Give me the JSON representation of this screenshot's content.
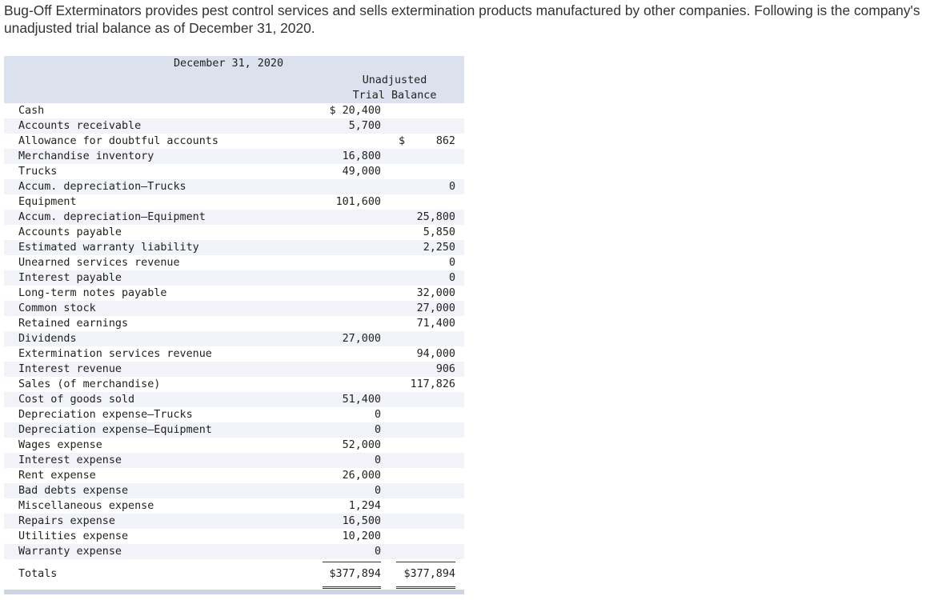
{
  "intro": "Bug-Off Exterminators provides pest control services and sells extermination products manufactured by other companies. Following is the company's unadjusted trial balance as of December 31, 2020.",
  "table": {
    "date_header": "December 31, 2020",
    "column_header_line1": "Unadjusted",
    "column_header_line2": "Trial Balance",
    "rows": [
      {
        "account": "Cash",
        "debit": "$ 20,400",
        "credit": ""
      },
      {
        "account": "Accounts receivable",
        "debit": "5,700",
        "credit": ""
      },
      {
        "account": "Allowance for doubtful accounts",
        "debit": "",
        "credit": "862",
        "credit_prefix": "$"
      },
      {
        "account": "Merchandise inventory",
        "debit": "16,800",
        "credit": ""
      },
      {
        "account": "Trucks",
        "debit": "49,000",
        "credit": ""
      },
      {
        "account": "Accum. depreciation—Trucks",
        "debit": "",
        "credit": "0"
      },
      {
        "account": "Equipment",
        "debit": "101,600",
        "credit": ""
      },
      {
        "account": "Accum. depreciation—Equipment",
        "debit": "",
        "credit": "25,800"
      },
      {
        "account": "Accounts payable",
        "debit": "",
        "credit": "5,850"
      },
      {
        "account": "Estimated warranty liability",
        "debit": "",
        "credit": "2,250"
      },
      {
        "account": "Unearned services revenue",
        "debit": "",
        "credit": "0"
      },
      {
        "account": "Interest payable",
        "debit": "",
        "credit": "0"
      },
      {
        "account": "Long-term notes payable",
        "debit": "",
        "credit": "32,000"
      },
      {
        "account": "Common stock",
        "debit": "",
        "credit": "27,000"
      },
      {
        "account": "Retained earnings",
        "debit": "",
        "credit": "71,400"
      },
      {
        "account": "Dividends",
        "debit": "27,000",
        "credit": ""
      },
      {
        "account": "Extermination services revenue",
        "debit": "",
        "credit": "94,000"
      },
      {
        "account": "Interest revenue",
        "debit": "",
        "credit": "906"
      },
      {
        "account": "Sales (of merchandise)",
        "debit": "",
        "credit": "117,826"
      },
      {
        "account": "Cost of goods sold",
        "debit": "51,400",
        "credit": ""
      },
      {
        "account": "Depreciation expense—Trucks",
        "debit": "0",
        "credit": ""
      },
      {
        "account": "Depreciation expense—Equipment",
        "debit": "0",
        "credit": ""
      },
      {
        "account": "Wages expense",
        "debit": "52,000",
        "credit": ""
      },
      {
        "account": "Interest expense",
        "debit": "0",
        "credit": ""
      },
      {
        "account": "Rent expense",
        "debit": "26,000",
        "credit": ""
      },
      {
        "account": "Bad debts expense",
        "debit": "0",
        "credit": ""
      },
      {
        "account": "Miscellaneous expense",
        "debit": "1,294",
        "credit": ""
      },
      {
        "account": "Repairs expense",
        "debit": "16,500",
        "credit": ""
      },
      {
        "account": "Utilities expense",
        "debit": "10,200",
        "credit": ""
      },
      {
        "account": "Warranty expense",
        "debit": "0",
        "credit": ""
      }
    ],
    "totals": {
      "label": "Totals",
      "debit": "$377,894",
      "credit": "$377,894"
    }
  }
}
